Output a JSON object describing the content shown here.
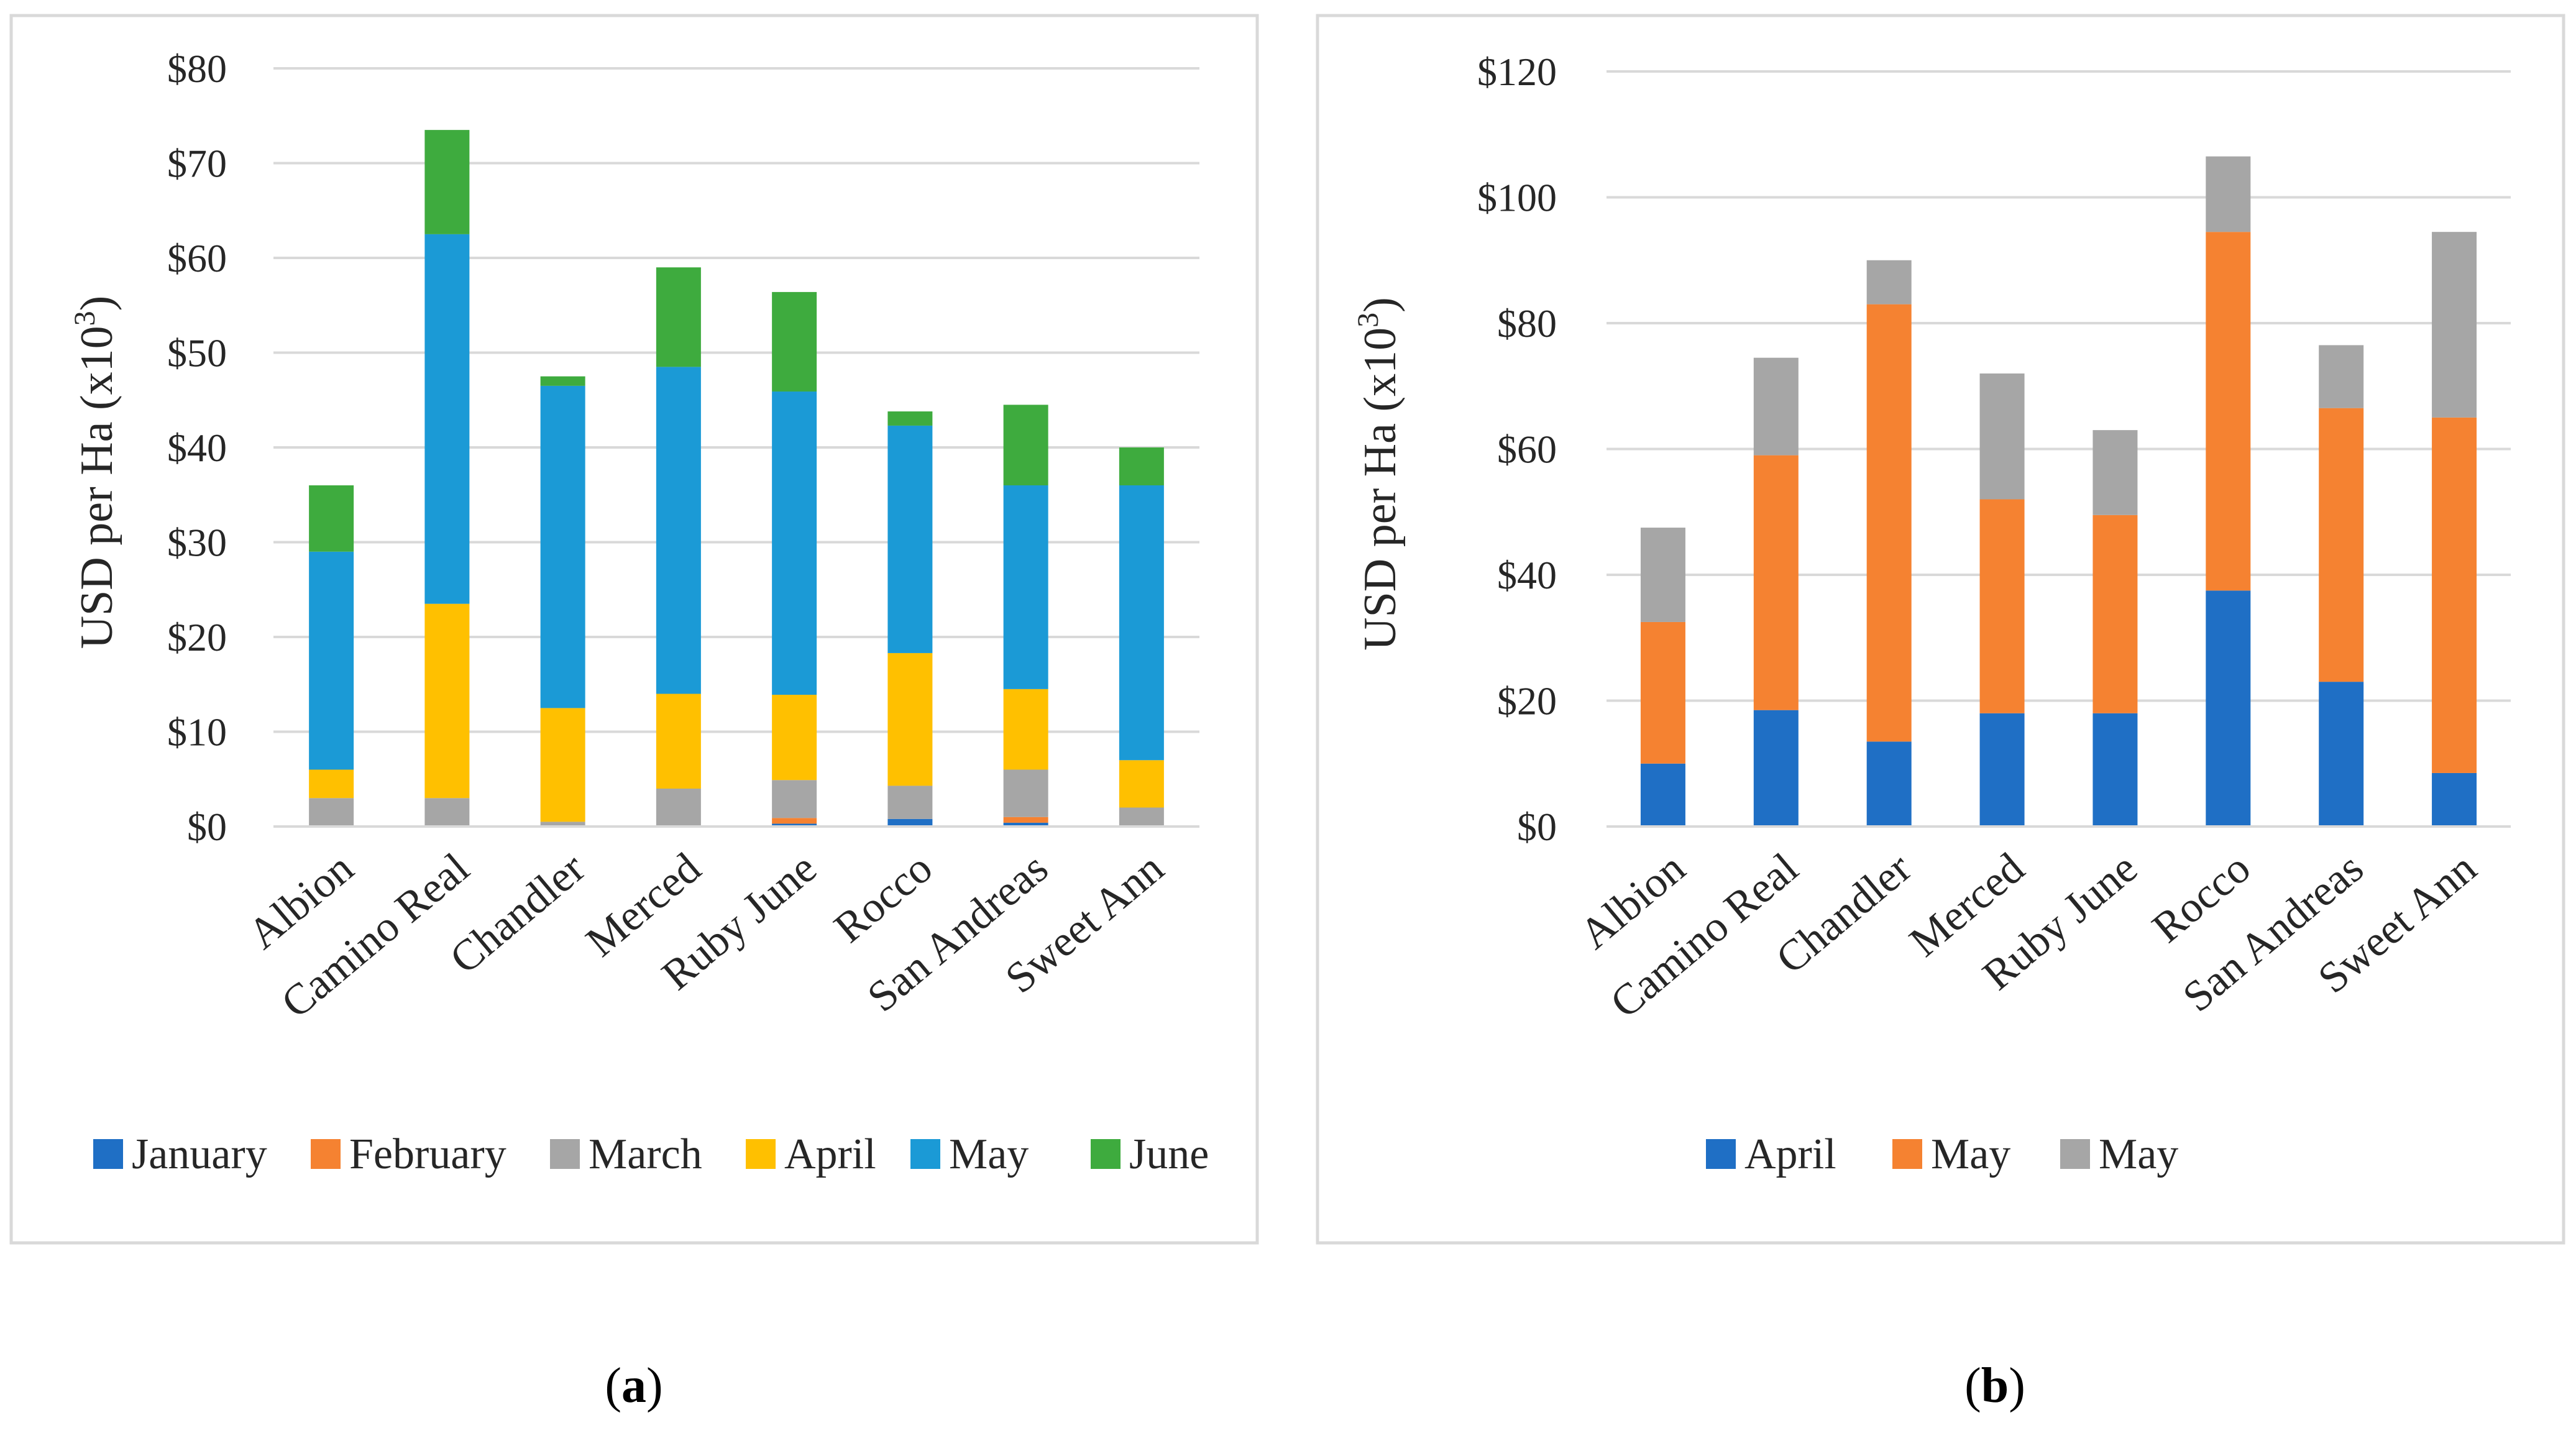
{
  "chart_data": [
    {
      "type": "bar",
      "stacked": true,
      "panel_label": "a",
      "title": "",
      "xlabel": "",
      "ylabel": "USD per Ha (x10",
      "ylabel_sup": "3",
      "ylabel_close": ")",
      "ylim": [
        0,
        80
      ],
      "yticks": [
        0,
        10,
        20,
        30,
        40,
        50,
        60,
        70,
        80
      ],
      "ytick_labels": [
        "$0",
        "$10",
        "$20",
        "$30",
        "$40",
        "$50",
        "$60",
        "$70",
        "$80"
      ],
      "grid": true,
      "legend_position": "bottom",
      "categories": [
        "Albion",
        "Camino Real",
        "Chandler",
        "Merced",
        "Ruby June",
        "Rocco",
        "San Andreas",
        "Sweet Ann"
      ],
      "series": [
        {
          "name": "January",
          "color": "#1f6fc5",
          "values": [
            0,
            0,
            0,
            0,
            0.3,
            0.8,
            0.4,
            0
          ]
        },
        {
          "name": "February",
          "color": "#f58231",
          "values": [
            0,
            0,
            0,
            0,
            0.6,
            0,
            0.6,
            0
          ]
        },
        {
          "name": "March",
          "color": "#a6a6a6",
          "values": [
            3.0,
            3.0,
            0.5,
            4.0,
            4.0,
            3.5,
            5.0,
            2.0
          ]
        },
        {
          "name": "April",
          "color": "#ffc000",
          "values": [
            3.0,
            20.5,
            12.0,
            10.0,
            9.0,
            14.0,
            8.5,
            5.0
          ]
        },
        {
          "name": "May",
          "color": "#1b9ad6",
          "values": [
            23.0,
            39.0,
            34.0,
            34.5,
            32.0,
            24.0,
            21.5,
            29.0
          ]
        },
        {
          "name": "June",
          "color": "#3eab3e",
          "values": [
            7.0,
            11.0,
            1.0,
            10.5,
            10.5,
            1.5,
            8.5,
            4.0
          ]
        }
      ]
    },
    {
      "type": "bar",
      "stacked": true,
      "panel_label": "b",
      "title": "",
      "xlabel": "",
      "ylabel": "USD per Ha (x10",
      "ylabel_sup": "3",
      "ylabel_close": ")",
      "ylim": [
        0,
        120
      ],
      "yticks": [
        0,
        20,
        40,
        60,
        80,
        100,
        120
      ],
      "ytick_labels": [
        "$0",
        "$20",
        "$40",
        "$60",
        "$80",
        "$100",
        "$120"
      ],
      "grid": true,
      "legend_position": "bottom",
      "categories": [
        "Albion",
        "Camino Real",
        "Chandler",
        "Merced",
        "Ruby June",
        "Rocco",
        "San Andreas",
        "Sweet Ann"
      ],
      "series": [
        {
          "name": "April",
          "color": "#1f6fc5",
          "values": [
            10.0,
            18.5,
            13.5,
            18.0,
            18.0,
            37.5,
            23.0,
            8.5
          ]
        },
        {
          "name": "May",
          "color": "#f58231",
          "values": [
            22.5,
            40.5,
            69.5,
            34.0,
            31.5,
            57.0,
            43.5,
            56.5
          ]
        },
        {
          "name": "May",
          "color": "#a6a6a6",
          "values": [
            15.0,
            15.5,
            7.0,
            20.0,
            13.5,
            12.0,
            10.0,
            29.5
          ]
        }
      ]
    }
  ]
}
